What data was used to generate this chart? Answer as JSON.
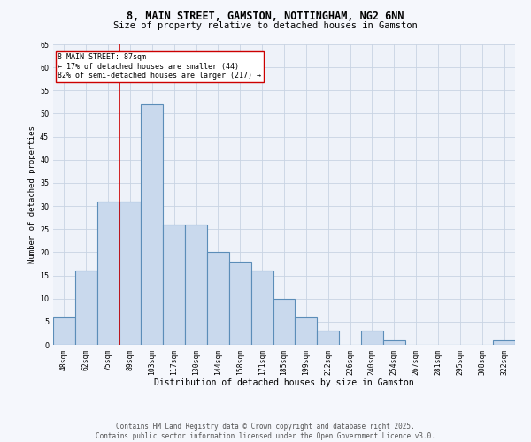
{
  "title_line1": "8, MAIN STREET, GAMSTON, NOTTINGHAM, NG2 6NN",
  "title_line2": "Size of property relative to detached houses in Gamston",
  "xlabel": "Distribution of detached houses by size in Gamston",
  "ylabel": "Number of detached properties",
  "categories": [
    "48sqm",
    "62sqm",
    "75sqm",
    "89sqm",
    "103sqm",
    "117sqm",
    "130sqm",
    "144sqm",
    "158sqm",
    "171sqm",
    "185sqm",
    "199sqm",
    "212sqm",
    "226sqm",
    "240sqm",
    "254sqm",
    "267sqm",
    "281sqm",
    "295sqm",
    "308sqm",
    "322sqm"
  ],
  "values": [
    6,
    16,
    31,
    31,
    52,
    26,
    26,
    20,
    18,
    16,
    10,
    6,
    3,
    0,
    3,
    1,
    0,
    0,
    0,
    0,
    1
  ],
  "bar_color": "#c9d9ed",
  "bar_edge_color": "#5b8db8",
  "bar_edge_width": 0.8,
  "vline_x": 2.5,
  "vline_color": "#cc0000",
  "annotation_text": "8 MAIN STREET: 87sqm\n← 17% of detached houses are smaller (44)\n82% of semi-detached houses are larger (217) →",
  "annotation_box_color": "#cc0000",
  "annotation_fontsize": 6.0,
  "ylim": [
    0,
    65
  ],
  "yticks": [
    0,
    5,
    10,
    15,
    20,
    25,
    30,
    35,
    40,
    45,
    50,
    55,
    60,
    65
  ],
  "grid_color": "#c8d4e3",
  "background_color": "#eef2f9",
  "fig_background_color": "#f5f7fc",
  "footer_text": "Contains HM Land Registry data © Crown copyright and database right 2025.\nContains public sector information licensed under the Open Government Licence v3.0.",
  "title_fontsize": 8.5,
  "subtitle_fontsize": 7.5,
  "xlabel_fontsize": 7.0,
  "ylabel_fontsize": 6.5,
  "tick_fontsize": 5.8,
  "footer_fontsize": 5.5
}
